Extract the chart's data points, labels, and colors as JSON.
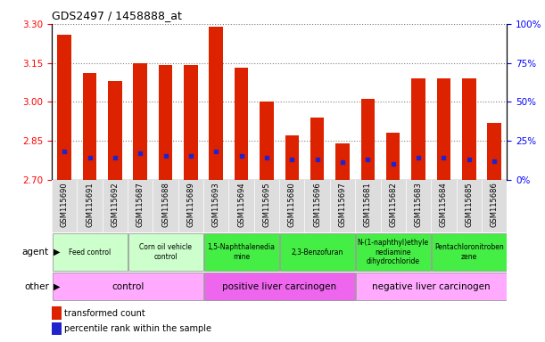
{
  "title": "GDS2497 / 1458888_at",
  "samples": [
    "GSM115690",
    "GSM115691",
    "GSM115692",
    "GSM115687",
    "GSM115688",
    "GSM115689",
    "GSM115693",
    "GSM115694",
    "GSM115695",
    "GSM115680",
    "GSM115696",
    "GSM115697",
    "GSM115681",
    "GSM115682",
    "GSM115683",
    "GSM115684",
    "GSM115685",
    "GSM115686"
  ],
  "transformed_count": [
    3.26,
    3.11,
    3.08,
    3.15,
    3.14,
    3.14,
    3.29,
    3.13,
    3.0,
    2.87,
    2.94,
    2.84,
    3.01,
    2.88,
    3.09,
    3.09,
    3.09,
    2.92
  ],
  "percentile_rank_pct": [
    18,
    14,
    14,
    17,
    15,
    15,
    18,
    15,
    14,
    13,
    13,
    11,
    13,
    10,
    14,
    14,
    13,
    12
  ],
  "ylim": [
    2.7,
    3.3
  ],
  "ylim_right": [
    0,
    100
  ],
  "yticks_left": [
    2.7,
    2.85,
    3.0,
    3.15,
    3.3
  ],
  "yticks_right": [
    0,
    25,
    50,
    75,
    100
  ],
  "bar_color": "#dd2200",
  "dot_color": "#2222cc",
  "bar_bottom": 2.7,
  "agent_groups": [
    {
      "label": "Feed control",
      "start": 0,
      "end": 3,
      "color": "#ccffcc"
    },
    {
      "label": "Corn oil vehicle\ncontrol",
      "start": 3,
      "end": 6,
      "color": "#ccffcc"
    },
    {
      "label": "1,5-Naphthalenedia\nmine",
      "start": 6,
      "end": 9,
      "color": "#44ee44"
    },
    {
      "label": "2,3-Benzofuran",
      "start": 9,
      "end": 12,
      "color": "#44ee44"
    },
    {
      "label": "N-(1-naphthyl)ethyle\nnediamine\ndihydrochloride",
      "start": 12,
      "end": 15,
      "color": "#44ee44"
    },
    {
      "label": "Pentachloronitroben\nzene",
      "start": 15,
      "end": 18,
      "color": "#44ee44"
    }
  ],
  "other_groups": [
    {
      "label": "control",
      "start": 0,
      "end": 6,
      "color": "#ffaaff"
    },
    {
      "label": "positive liver carcinogen",
      "start": 6,
      "end": 12,
      "color": "#ee66ee"
    },
    {
      "label": "negative liver carcinogen",
      "start": 12,
      "end": 18,
      "color": "#ffaaff"
    }
  ],
  "legend_red": "transformed count",
  "legend_blue": "percentile rank within the sample",
  "tick_bg_color": "#dddddd"
}
